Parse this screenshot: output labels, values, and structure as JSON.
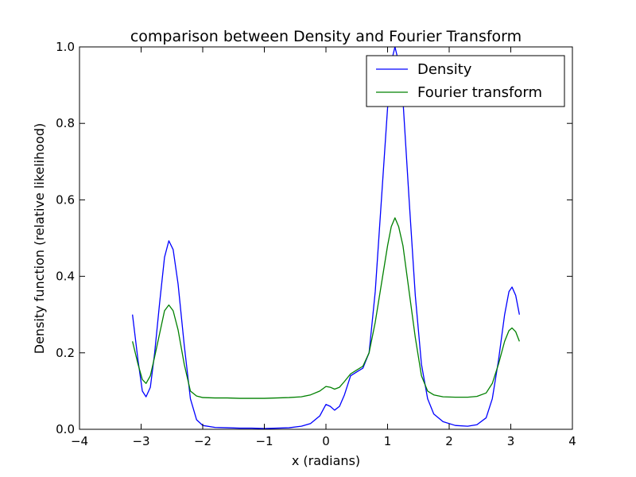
{
  "chart_data": {
    "type": "line",
    "title": "comparison between Density and Fourier Transform",
    "xlabel": "x (radians)",
    "ylabel": "Density function (relative likelihood)",
    "xlim": [
      -4,
      4
    ],
    "ylim": [
      0.0,
      1.0
    ],
    "xticks": [
      -4,
      -3,
      -2,
      -1,
      0,
      1,
      2,
      3,
      4
    ],
    "xtick_labels": [
      "−4",
      "−3",
      "−2",
      "−1",
      "0",
      "1",
      "2",
      "3",
      "4"
    ],
    "yticks": [
      0.0,
      0.2,
      0.4,
      0.6,
      0.8,
      1.0
    ],
    "ytick_labels": [
      "0.0",
      "0.2",
      "0.4",
      "0.6",
      "0.8",
      "1.0"
    ],
    "grid": false,
    "legend": "top-right",
    "series": [
      {
        "name": "Density",
        "color": "#0000ff",
        "points": [
          [
            -3.14,
            0.3
          ],
          [
            -3.05,
            0.18
          ],
          [
            -2.98,
            0.1
          ],
          [
            -2.92,
            0.085
          ],
          [
            -2.85,
            0.11
          ],
          [
            -2.78,
            0.2
          ],
          [
            -2.7,
            0.33
          ],
          [
            -2.62,
            0.45
          ],
          [
            -2.55,
            0.493
          ],
          [
            -2.48,
            0.47
          ],
          [
            -2.4,
            0.38
          ],
          [
            -2.3,
            0.22
          ],
          [
            -2.2,
            0.08
          ],
          [
            -2.1,
            0.025
          ],
          [
            -2.0,
            0.01
          ],
          [
            -1.8,
            0.005
          ],
          [
            -1.6,
            0.004
          ],
          [
            -1.4,
            0.003
          ],
          [
            -1.2,
            0.003
          ],
          [
            -1.0,
            0.002
          ],
          [
            -0.8,
            0.003
          ],
          [
            -0.6,
            0.004
          ],
          [
            -0.4,
            0.008
          ],
          [
            -0.25,
            0.015
          ],
          [
            -0.1,
            0.035
          ],
          [
            0.0,
            0.065
          ],
          [
            0.07,
            0.06
          ],
          [
            0.14,
            0.05
          ],
          [
            0.22,
            0.06
          ],
          [
            0.3,
            0.09
          ],
          [
            0.4,
            0.14
          ],
          [
            0.5,
            0.15
          ],
          [
            0.6,
            0.16
          ],
          [
            0.7,
            0.2
          ],
          [
            0.8,
            0.36
          ],
          [
            0.9,
            0.6
          ],
          [
            1.0,
            0.84
          ],
          [
            1.06,
            0.96
          ],
          [
            1.12,
            1.0
          ],
          [
            1.18,
            0.96
          ],
          [
            1.25,
            0.86
          ],
          [
            1.35,
            0.6
          ],
          [
            1.45,
            0.35
          ],
          [
            1.55,
            0.17
          ],
          [
            1.65,
            0.08
          ],
          [
            1.75,
            0.04
          ],
          [
            1.9,
            0.02
          ],
          [
            2.1,
            0.01
          ],
          [
            2.3,
            0.008
          ],
          [
            2.45,
            0.012
          ],
          [
            2.6,
            0.03
          ],
          [
            2.7,
            0.08
          ],
          [
            2.8,
            0.18
          ],
          [
            2.9,
            0.3
          ],
          [
            2.97,
            0.36
          ],
          [
            3.02,
            0.372
          ],
          [
            3.08,
            0.35
          ],
          [
            3.14,
            0.3
          ]
        ]
      },
      {
        "name": "Fourier transform",
        "color": "#008000",
        "points": [
          [
            -3.14,
            0.23
          ],
          [
            -3.05,
            0.17
          ],
          [
            -2.98,
            0.13
          ],
          [
            -2.92,
            0.12
          ],
          [
            -2.85,
            0.14
          ],
          [
            -2.78,
            0.19
          ],
          [
            -2.7,
            0.25
          ],
          [
            -2.62,
            0.31
          ],
          [
            -2.55,
            0.325
          ],
          [
            -2.48,
            0.31
          ],
          [
            -2.4,
            0.26
          ],
          [
            -2.3,
            0.17
          ],
          [
            -2.2,
            0.1
          ],
          [
            -2.1,
            0.087
          ],
          [
            -2.0,
            0.083
          ],
          [
            -1.8,
            0.082
          ],
          [
            -1.6,
            0.082
          ],
          [
            -1.4,
            0.081
          ],
          [
            -1.2,
            0.081
          ],
          [
            -1.0,
            0.081
          ],
          [
            -0.8,
            0.082
          ],
          [
            -0.6,
            0.083
          ],
          [
            -0.4,
            0.085
          ],
          [
            -0.25,
            0.09
          ],
          [
            -0.1,
            0.1
          ],
          [
            0.0,
            0.112
          ],
          [
            0.07,
            0.11
          ],
          [
            0.14,
            0.105
          ],
          [
            0.22,
            0.11
          ],
          [
            0.3,
            0.125
          ],
          [
            0.4,
            0.145
          ],
          [
            0.5,
            0.155
          ],
          [
            0.6,
            0.165
          ],
          [
            0.7,
            0.2
          ],
          [
            0.8,
            0.28
          ],
          [
            0.9,
            0.38
          ],
          [
            1.0,
            0.48
          ],
          [
            1.06,
            0.53
          ],
          [
            1.12,
            0.553
          ],
          [
            1.18,
            0.53
          ],
          [
            1.25,
            0.48
          ],
          [
            1.35,
            0.36
          ],
          [
            1.45,
            0.24
          ],
          [
            1.55,
            0.14
          ],
          [
            1.65,
            0.1
          ],
          [
            1.75,
            0.09
          ],
          [
            1.9,
            0.085
          ],
          [
            2.1,
            0.084
          ],
          [
            2.3,
            0.084
          ],
          [
            2.45,
            0.086
          ],
          [
            2.6,
            0.095
          ],
          [
            2.7,
            0.12
          ],
          [
            2.8,
            0.17
          ],
          [
            2.9,
            0.23
          ],
          [
            2.97,
            0.258
          ],
          [
            3.02,
            0.265
          ],
          [
            3.08,
            0.255
          ],
          [
            3.14,
            0.23
          ]
        ]
      }
    ]
  }
}
